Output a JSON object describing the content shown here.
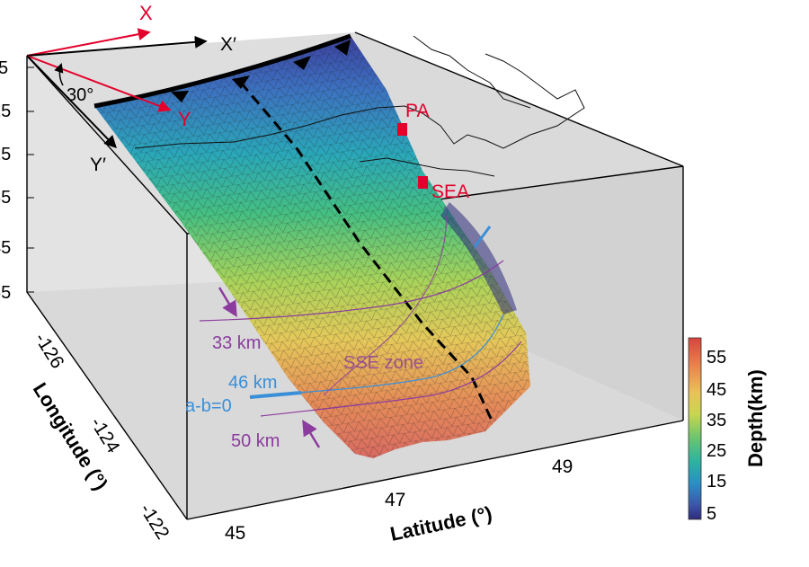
{
  "axes": {
    "depth_ticks": [
      "5",
      "15",
      "25",
      "35",
      "45",
      "55"
    ],
    "longitude_ticks": [
      "-126",
      "-124",
      "-122"
    ],
    "longitude_label": "Longitude (°)",
    "latitude_ticks": [
      "45",
      "47",
      "49"
    ],
    "latitude_label": "Latitude (°)"
  },
  "frame_labels": {
    "x": "X",
    "x_prime": "X′",
    "y": "Y",
    "y_prime": "Y′",
    "angle": "30°"
  },
  "stations": [
    {
      "name": "PA"
    },
    {
      "name": "SEA"
    }
  ],
  "annotations": {
    "depth_33": "33 km",
    "depth_46": "46 km",
    "depth_50": "50 km",
    "ab_zero": "a-b=0",
    "sse_zone": "SSE zone"
  },
  "colorbar": {
    "title": "Depth(km)",
    "ticks": [
      "55",
      "45",
      "35",
      "25",
      "15",
      "5"
    ],
    "stops": [
      "#d6453d",
      "#e9824e",
      "#eac15a",
      "#c8d650",
      "#6cc56e",
      "#2db3a0",
      "#2c8fc4",
      "#3b56a8",
      "#2e2a7a"
    ]
  },
  "colors": {
    "red": "#e4002b",
    "purple": "#8b3c9e",
    "blue": "#3a8fd8",
    "frame": "#000000",
    "box_face": "#d9d9d9"
  }
}
